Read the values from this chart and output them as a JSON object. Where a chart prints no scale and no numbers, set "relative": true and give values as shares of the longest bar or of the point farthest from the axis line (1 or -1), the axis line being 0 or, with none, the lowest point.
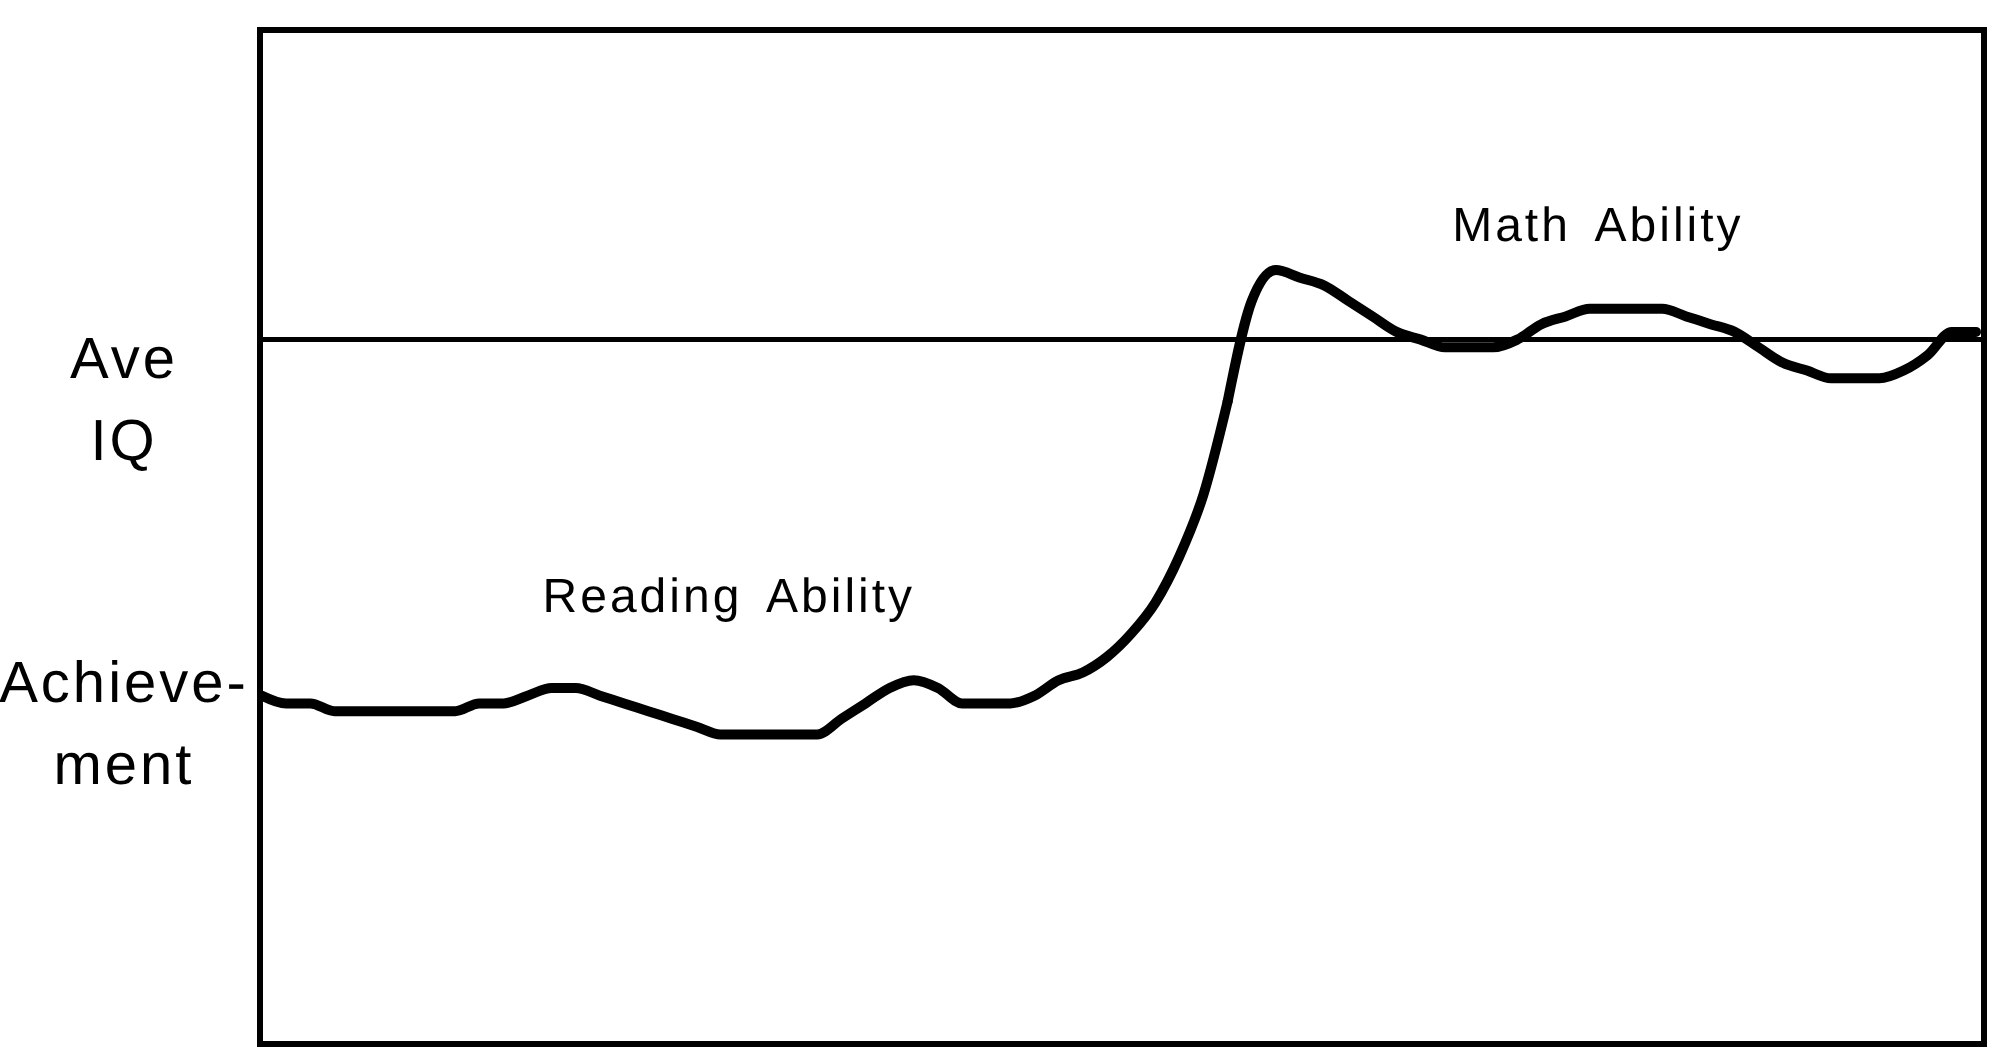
{
  "chart_data": {
    "type": "line",
    "relative": true,
    "categories": [
      null,
      null,
      null,
      null,
      null,
      null,
      null,
      null,
      null,
      null,
      null,
      null,
      null,
      null,
      null,
      null,
      null,
      null,
      null,
      null,
      null,
      null,
      null,
      null,
      null,
      null,
      null,
      null,
      null,
      null,
      null,
      null,
      null,
      null,
      null,
      null,
      null,
      null,
      null,
      null,
      null,
      null,
      null,
      null,
      null,
      null,
      null,
      null,
      null,
      null,
      null,
      null,
      null,
      null,
      null,
      null,
      null,
      null,
      null,
      null,
      null,
      null,
      null,
      null,
      null,
      null,
      null,
      null,
      null,
      null,
      null,
      null
    ],
    "series": [
      {
        "name": "Reading Ability",
        "color": "#000000",
        "values": [
          0.45,
          0.44,
          0.44,
          0.43,
          0.43,
          0.43,
          0.43,
          0.43,
          0.43,
          0.44,
          0.44,
          0.45,
          0.46,
          0.46,
          0.45,
          0.44,
          0.43,
          0.42,
          0.41,
          0.4,
          0.4,
          0.4,
          0.4,
          0.4,
          0.42,
          0.44,
          0.46,
          0.47,
          0.46,
          0.44,
          0.44,
          0.44,
          0.45,
          0.47,
          0.48,
          0.5,
          0.53,
          0.57,
          0.63,
          0.71,
          0.83,
          null,
          null,
          null,
          null,
          null,
          null,
          null,
          null,
          null,
          null,
          null,
          null,
          null,
          null,
          null,
          null,
          null,
          null,
          null,
          null,
          null,
          null,
          null,
          null,
          null,
          null,
          null,
          null,
          null,
          null,
          null
        ]
      },
      {
        "name": "Math Ability",
        "color": "#000000",
        "values": [
          null,
          null,
          null,
          null,
          null,
          null,
          null,
          null,
          null,
          null,
          null,
          null,
          null,
          null,
          null,
          null,
          null,
          null,
          null,
          null,
          null,
          null,
          null,
          null,
          null,
          null,
          null,
          null,
          null,
          null,
          null,
          null,
          null,
          null,
          null,
          null,
          null,
          null,
          null,
          null,
          0.83,
          0.96,
          1.0,
          0.99,
          0.98,
          0.96,
          0.94,
          0.92,
          0.91,
          0.9,
          0.9,
          0.9,
          0.91,
          0.93,
          0.94,
          0.95,
          0.95,
          0.95,
          0.95,
          0.94,
          0.93,
          0.92,
          0.9,
          0.88,
          0.87,
          0.86,
          0.86,
          0.86,
          0.87,
          0.89,
          0.92,
          0.92
        ]
      }
    ],
    "ref_lines": [
      {
        "axis": "y",
        "value": 0.91,
        "label": "Ave IQ"
      }
    ],
    "annotations": [
      "Achieve-ment"
    ]
  }
}
